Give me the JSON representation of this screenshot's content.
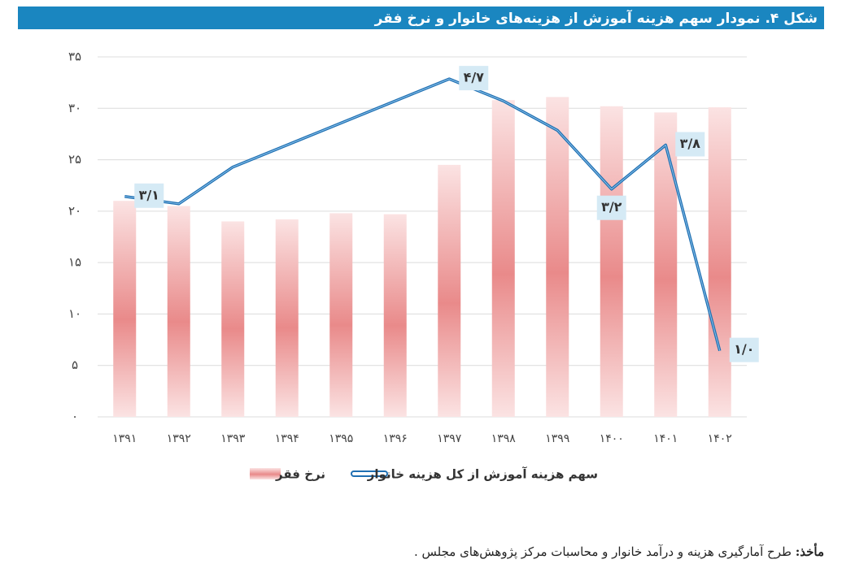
{
  "chart_data": {
    "type": "bar_line",
    "title": "شکل ۴. نمودار سهم هزینه آموزش از هزینه‌های خانوار و نرخ فقر",
    "categories": [
      "۱۳۹۱",
      "۱۳۹۲",
      "۱۳۹۳",
      "۱۳۹۴",
      "۱۳۹۵",
      "۱۳۹۶",
      "۱۳۹۷",
      "۱۳۹۸",
      "۱۳۹۹",
      "۱۴۰۰",
      "۱۴۰۱",
      "۱۴۰۲"
    ],
    "series": [
      {
        "name": "نرخ فقر",
        "type": "bar",
        "color": "#e88585",
        "values": [
          21.0,
          20.5,
          19.0,
          19.2,
          19.8,
          19.7,
          24.5,
          30.8,
          31.1,
          30.2,
          29.6,
          30.1
        ]
      },
      {
        "name": "سهم هزینه آموزش از کل هزینه خانوار",
        "type": "line",
        "axis": "y2",
        "color": "#1f6fb2",
        "values": [
          3.1,
          3.0,
          3.5,
          3.8,
          4.1,
          4.4,
          4.7,
          4.4,
          4.0,
          3.2,
          3.8,
          1.0
        ],
        "value_labels": [
          "۳/۱",
          null,
          null,
          null,
          null,
          null,
          "۴/۷",
          null,
          null,
          "۳/۲",
          "۳/۸",
          "۱/۰"
        ]
      }
    ],
    "ylim": [
      0,
      35
    ],
    "yticks": [
      {
        "value": 0,
        "label": "۰"
      },
      {
        "value": 5,
        "label": "۵"
      },
      {
        "value": 10,
        "label": "۱۰"
      },
      {
        "value": 15,
        "label": "۱۵"
      },
      {
        "value": 20,
        "label": "۲۰"
      },
      {
        "value": 25,
        "label": "۲۵"
      },
      {
        "value": 30,
        "label": "۳۰"
      },
      {
        "value": 35,
        "label": "۳۵"
      }
    ],
    "y2lim": [
      0.1,
      5.0
    ],
    "grid": true,
    "source_label": "مأخذ:",
    "source": "طرح آمارگیری هزینه و درآمد خانوار و محاسبات مرکز پژوهش‌های مجلس ."
  }
}
